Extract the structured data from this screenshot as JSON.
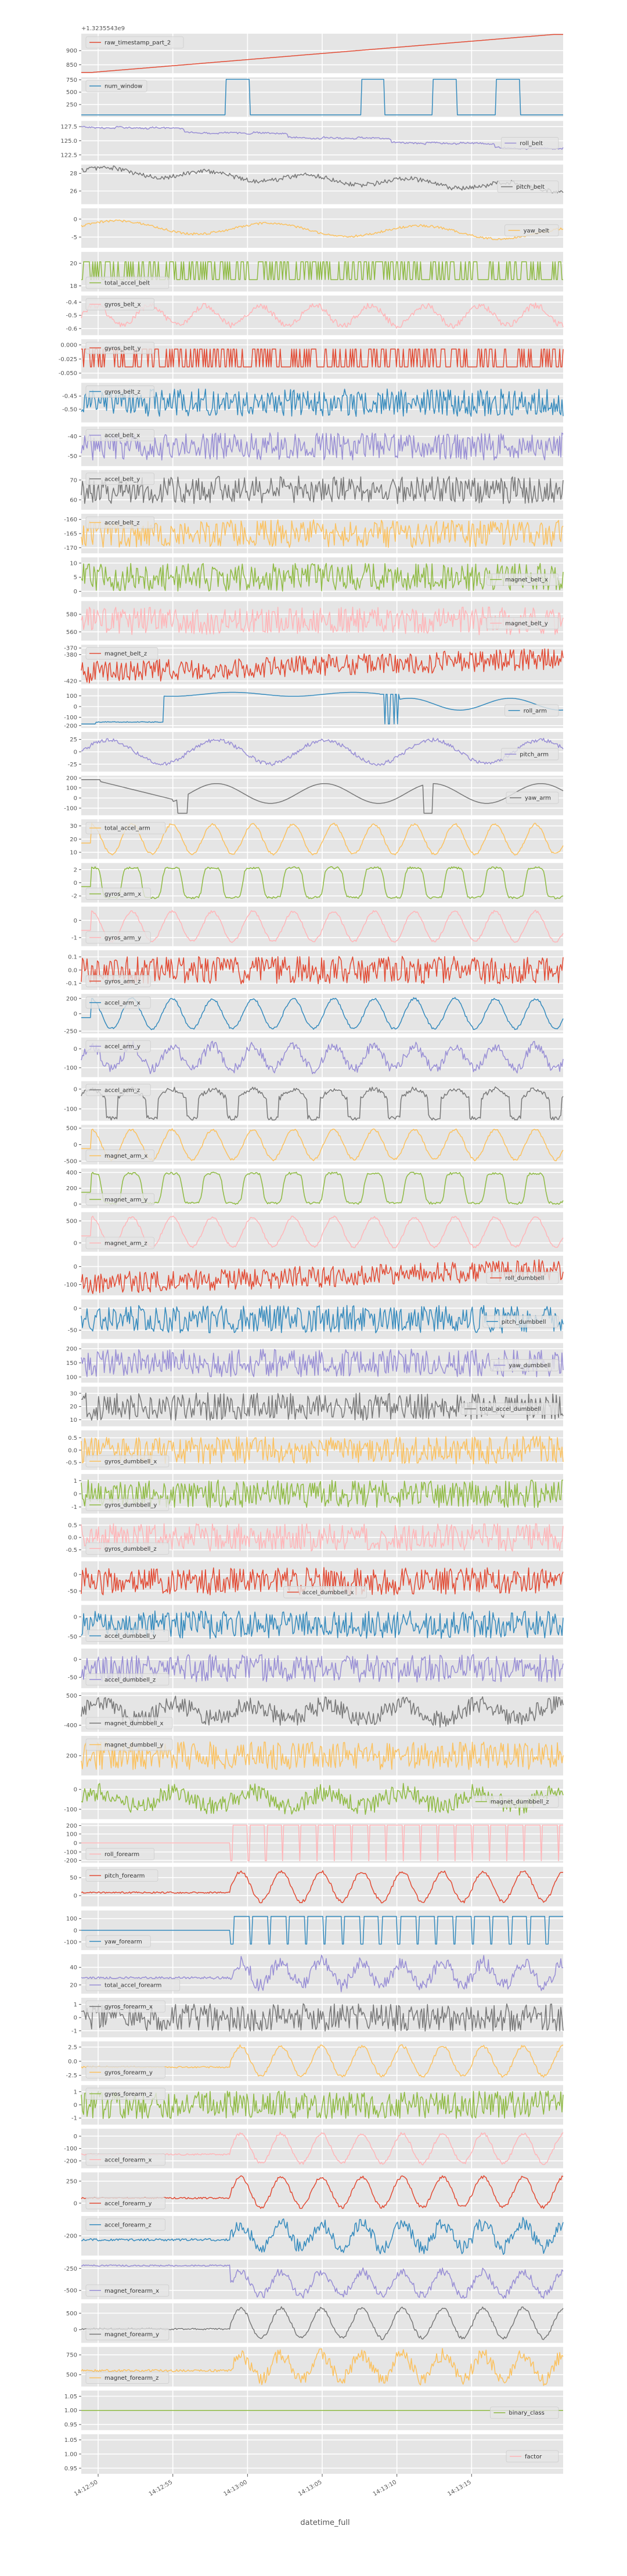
{
  "chart_data": {
    "type": "line",
    "xlabel": "datetime_full",
    "x_ticks": [
      "14:12:50",
      "14:12:55",
      "14:13:00",
      "14:13:05",
      "14:13:10",
      "14:13:15"
    ],
    "offset_text": "+1.3235543e9",
    "grid": true,
    "panels": [
      {
        "name": "raw_timestamp_part_2",
        "color": "#E24A33",
        "legend": "top-left",
        "yticks": [
          "900",
          "850"
        ],
        "ylim": [
          820,
          960
        ],
        "pattern": "ramp"
      },
      {
        "name": "num_window",
        "color": "#348ABD",
        "legend": "top-left",
        "yticks": [
          "750",
          "500",
          "250"
        ],
        "ylim": [
          0,
          800
        ],
        "pattern": "pulses"
      },
      {
        "name": "roll_belt",
        "color": "#988ED5",
        "legend": "right",
        "yticks": [
          "127.5",
          "125.0",
          "122.5"
        ],
        "ylim": [
          121.5,
          128.5
        ],
        "pattern": "step_down"
      },
      {
        "name": "pitch_belt",
        "color": "#777777",
        "legend": "right",
        "yticks": [
          "28",
          "26"
        ],
        "ylim": [
          24.5,
          29
        ],
        "pattern": "decline_noise"
      },
      {
        "name": "yaw_belt",
        "color": "#FBC15E",
        "legend": "right",
        "yticks": [
          "0",
          "-5"
        ],
        "ylim": [
          -8,
          3
        ],
        "pattern": "wave_slow"
      },
      {
        "name": "total_accel_belt",
        "color": "#8EBA42",
        "legend": "bottom-left",
        "yticks": [
          "20",
          "18"
        ],
        "ylim": [
          17.5,
          21
        ],
        "pattern": "binary_noise"
      },
      {
        "name": "gyros_belt_x",
        "color": "#FFB5B8",
        "legend": "top-left",
        "yticks": [
          "-0.4",
          "-0.5",
          "-0.6"
        ],
        "ylim": [
          -0.65,
          -0.35
        ],
        "pattern": "wave_fast"
      },
      {
        "name": "gyros_belt_y",
        "color": "#E24A33",
        "legend": "top-left",
        "yticks": [
          "0.000",
          "-0.025",
          "-0.050"
        ],
        "ylim": [
          -0.06,
          0.01
        ],
        "pattern": "binary_noise"
      },
      {
        "name": "gyros_belt_z",
        "color": "#348ABD",
        "legend": "top-left",
        "yticks": [
          "-0.45",
          "-0.50"
        ],
        "ylim": [
          -0.55,
          -0.4
        ],
        "pattern": "noise"
      },
      {
        "name": "accel_belt_x",
        "color": "#988ED5",
        "legend": "top-left",
        "yticks": [
          "-40",
          "-50"
        ],
        "ylim": [
          -55,
          -35
        ],
        "pattern": "noise"
      },
      {
        "name": "accel_belt_y",
        "color": "#777777",
        "legend": "top-left",
        "yticks": [
          "70",
          "60"
        ],
        "ylim": [
          55,
          75
        ],
        "pattern": "noise"
      },
      {
        "name": "accel_belt_z",
        "color": "#FBC15E",
        "legend": "top-left",
        "yticks": [
          "-170",
          "-165",
          "-160"
        ],
        "ylim": [
          -172,
          -158
        ],
        "pattern": "noise"
      },
      {
        "name": "magnet_belt_x",
        "color": "#8EBA42",
        "legend": "right",
        "yticks": [
          "10",
          "5",
          "0"
        ],
        "ylim": [
          -2,
          12
        ],
        "pattern": "noise"
      },
      {
        "name": "magnet_belt_y",
        "color": "#FFB5B8",
        "legend": "right",
        "yticks": [
          "580",
          "560"
        ],
        "ylim": [
          550,
          595
        ],
        "pattern": "noise"
      },
      {
        "name": "magnet_belt_z",
        "color": "#E24A33",
        "legend": "top-left",
        "yticks": [
          "-370",
          "-380",
          "-420"
        ],
        "ylim": [
          -425,
          -365
        ],
        "pattern": "noise_rise"
      },
      {
        "name": "roll_arm",
        "color": "#348ABD",
        "legend": "right",
        "yticks": [
          "100",
          "0",
          "-100",
          "-200"
        ],
        "ylim": [
          -200,
          170
        ],
        "pattern": "arm_roll"
      },
      {
        "name": "pitch_arm",
        "color": "#988ED5",
        "legend": "right",
        "yticks": [
          "25",
          "0",
          "-25"
        ],
        "ylim": [
          -40,
          40
        ],
        "pattern": "wave_medium"
      },
      {
        "name": "yaw_arm",
        "color": "#777777",
        "legend": "right",
        "yticks": [
          "200",
          "100",
          "0",
          "-100"
        ],
        "ylim": [
          -170,
          220
        ],
        "pattern": "arm_yaw"
      },
      {
        "name": "total_accel_arm",
        "color": "#FBC15E",
        "legend": "top-left",
        "yticks": [
          "30",
          "20",
          "10"
        ],
        "ylim": [
          5,
          35
        ],
        "pattern": "periodic"
      },
      {
        "name": "gyros_arm_x",
        "color": "#8EBA42",
        "legend": "bottom-left",
        "yticks": [
          "2",
          "0",
          "-2"
        ],
        "ylim": [
          -3,
          3
        ],
        "pattern": "periodic_sq"
      },
      {
        "name": "gyros_arm_y",
        "color": "#FFB5B8",
        "legend": "bottom-left",
        "yticks": [
          "0",
          "-1"
        ],
        "ylim": [
          -1.5,
          0.8
        ],
        "pattern": "periodic"
      },
      {
        "name": "gyros_arm_z",
        "color": "#E24A33",
        "legend": "bottom-left",
        "yticks": [
          "0.1",
          "0.0",
          "-0.1"
        ],
        "ylim": [
          -0.15,
          0.15
        ],
        "pattern": "noise"
      },
      {
        "name": "accel_arm_x",
        "color": "#348ABD",
        "legend": "top-left",
        "yticks": [
          "200",
          "0",
          "-250"
        ],
        "ylim": [
          -260,
          260
        ],
        "pattern": "periodic"
      },
      {
        "name": "accel_arm_y",
        "color": "#988ED5",
        "legend": "top-left",
        "yticks": [
          "0",
          "-100"
        ],
        "ylim": [
          -150,
          60
        ],
        "pattern": "periodic_noise"
      },
      {
        "name": "accel_arm_z",
        "color": "#777777",
        "legend": "top-left",
        "yticks": [
          "0",
          "-100"
        ],
        "ylim": [
          -160,
          40
        ],
        "pattern": "periodic_dips"
      },
      {
        "name": "magnet_arm_x",
        "color": "#FBC15E",
        "legend": "bottom-left",
        "yticks": [
          "500",
          "0",
          "-500"
        ],
        "ylim": [
          -600,
          600
        ],
        "pattern": "periodic"
      },
      {
        "name": "magnet_arm_y",
        "color": "#8EBA42",
        "legend": "bottom-left",
        "yticks": [
          "400",
          "200",
          "0"
        ],
        "ylim": [
          -50,
          450
        ],
        "pattern": "periodic_sq"
      },
      {
        "name": "magnet_arm_z",
        "color": "#FFB5B8",
        "legend": "bottom-left",
        "yticks": [
          "500",
          "0"
        ],
        "ylim": [
          -200,
          700
        ],
        "pattern": "periodic"
      },
      {
        "name": "roll_dumbbell",
        "color": "#E24A33",
        "legend": "right",
        "yticks": [
          "0",
          "-100"
        ],
        "ylim": [
          -160,
          60
        ],
        "pattern": "noise_rise"
      },
      {
        "name": "pitch_dumbbell",
        "color": "#348ABD",
        "legend": "right",
        "yticks": [
          "0",
          "-50"
        ],
        "ylim": [
          -70,
          20
        ],
        "pattern": "noise"
      },
      {
        "name": "yaw_dumbbell",
        "color": "#988ED5",
        "legend": "right",
        "yticks": [
          "200",
          "150",
          "100"
        ],
        "ylim": [
          80,
          220
        ],
        "pattern": "noise"
      },
      {
        "name": "total_accel_dumbbell",
        "color": "#777777",
        "legend": "right",
        "yticks": [
          "30",
          "20",
          "10"
        ],
        "ylim": [
          5,
          35
        ],
        "pattern": "noise"
      },
      {
        "name": "gyros_dumbbell_x",
        "color": "#FBC15E",
        "legend": "bottom-left",
        "yticks": [
          "0.5",
          "0.0",
          "-0.5"
        ],
        "ylim": [
          -0.8,
          0.8
        ],
        "pattern": "noise"
      },
      {
        "name": "gyros_dumbbell_y",
        "color": "#8EBA42",
        "legend": "bottom-left",
        "yticks": [
          "1",
          "0",
          "-1"
        ],
        "ylim": [
          -1.5,
          1.5
        ],
        "pattern": "noise"
      },
      {
        "name": "gyros_dumbbell_z",
        "color": "#FFB5B8",
        "legend": "bottom-left",
        "yticks": [
          "0.5",
          "0.0",
          "-0.5"
        ],
        "ylim": [
          -0.8,
          0.8
        ],
        "pattern": "noise"
      },
      {
        "name": "accel_dumbbell_x",
        "color": "#E24A33",
        "legend": "bottom-center",
        "yticks": [
          "0",
          "-50"
        ],
        "ylim": [
          -80,
          40
        ],
        "pattern": "noise"
      },
      {
        "name": "accel_dumbbell_y",
        "color": "#348ABD",
        "legend": "bottom-left",
        "yticks": [
          "0",
          "-50"
        ],
        "ylim": [
          -70,
          30
        ],
        "pattern": "noise"
      },
      {
        "name": "accel_dumbbell_z",
        "color": "#988ED5",
        "legend": "bottom-left",
        "yticks": [
          "0",
          "-50"
        ],
        "ylim": [
          -80,
          30
        ],
        "pattern": "noise"
      },
      {
        "name": "magnet_dumbbell_x",
        "color": "#777777",
        "legend": "bottom-left",
        "yticks": [
          "500",
          "-400"
        ],
        "ylim": [
          -600,
          600
        ],
        "pattern": "noise_wave"
      },
      {
        "name": "magnet_dumbbell_y",
        "color": "#FBC15E",
        "legend": "top-left",
        "yticks": [
          "200"
        ],
        "ylim": [
          100,
          300
        ],
        "pattern": "noise"
      },
      {
        "name": "magnet_dumbbell_z",
        "color": "#8EBA42",
        "legend": "right",
        "yticks": [
          "0",
          "-100"
        ],
        "ylim": [
          -150,
          50
        ],
        "pattern": "noise_wave"
      },
      {
        "name": "roll_forearm",
        "color": "#FFB5B8",
        "legend": "bottom-left",
        "yticks": [
          "200",
          "100",
          "0",
          "-100",
          "-200"
        ],
        "ylim": [
          -220,
          220
        ],
        "pattern": "forearm_roll"
      },
      {
        "name": "pitch_forearm",
        "color": "#E24A33",
        "legend": "top-left",
        "yticks": [
          "50",
          "0"
        ],
        "ylim": [
          -30,
          80
        ],
        "pattern": "forearm_periodic"
      },
      {
        "name": "yaw_forearm",
        "color": "#348ABD",
        "legend": "bottom-left",
        "yticks": [
          "100",
          "0",
          "-100"
        ],
        "ylim": [
          -170,
          170
        ],
        "pattern": "forearm_sq"
      },
      {
        "name": "total_accel_forearm",
        "color": "#988ED5",
        "legend": "bottom-left",
        "yticks": [
          "40",
          "20"
        ],
        "ylim": [
          10,
          55
        ],
        "pattern": "forearm_noise"
      },
      {
        "name": "gyros_forearm_x",
        "color": "#777777",
        "legend": "top-left",
        "yticks": [
          "1",
          "0",
          "-1"
        ],
        "ylim": [
          -1.5,
          1.5
        ],
        "pattern": "noise"
      },
      {
        "name": "gyros_forearm_y",
        "color": "#FBC15E",
        "legend": "bottom-left",
        "yticks": [
          "2.5",
          "0.0",
          "-2.5"
        ],
        "ylim": [
          -3.5,
          3.5
        ],
        "pattern": "forearm_periodic"
      },
      {
        "name": "gyros_forearm_z",
        "color": "#8EBA42",
        "legend": "top-left",
        "yticks": [
          "1",
          "0",
          "-1"
        ],
        "ylim": [
          -1.5,
          1.5
        ],
        "pattern": "noise"
      },
      {
        "name": "accel_forearm_x",
        "color": "#FFB5B8",
        "legend": "bottom-left",
        "yticks": [
          "0",
          "-100",
          "-200"
        ],
        "ylim": [
          -260,
          60
        ],
        "pattern": "forearm_periodic"
      },
      {
        "name": "accel_forearm_y",
        "color": "#E24A33",
        "legend": "bottom-left",
        "yticks": [
          "250",
          "0"
        ],
        "ylim": [
          -100,
          350
        ],
        "pattern": "forearm_periodic"
      },
      {
        "name": "accel_forearm_z",
        "color": "#348ABD",
        "legend": "top-left",
        "yticks": [
          "-200"
        ],
        "ylim": [
          -300,
          -100
        ],
        "pattern": "forearm_noise"
      },
      {
        "name": "magnet_forearm_x",
        "color": "#988ED5",
        "legend": "bottom-left",
        "yticks": [
          "-250",
          "-500"
        ],
        "ylim": [
          -600,
          -150
        ],
        "pattern": "forearm_drop"
      },
      {
        "name": "magnet_forearm_y",
        "color": "#777777",
        "legend": "bottom-left",
        "yticks": [
          "500",
          "0"
        ],
        "ylim": [
          -400,
          800
        ],
        "pattern": "forearm_periodic"
      },
      {
        "name": "magnet_forearm_z",
        "color": "#FBC15E",
        "legend": "bottom-left",
        "yticks": [
          "750",
          "500"
        ],
        "ylim": [
          350,
          850
        ],
        "pattern": "forearm_noise"
      },
      {
        "name": "binary_class",
        "color": "#8EBA42",
        "legend": "right",
        "yticks": [
          "1.05",
          "1.00",
          "0.95"
        ],
        "ylim": [
          0.93,
          1.07
        ],
        "pattern": "flat"
      },
      {
        "name": "factor",
        "color": "#FFB5B8",
        "legend": "right",
        "yticks": [
          "1.05",
          "1.00",
          "0.95"
        ],
        "ylim": [
          0.93,
          1.07
        ],
        "pattern": "empty"
      }
    ]
  }
}
